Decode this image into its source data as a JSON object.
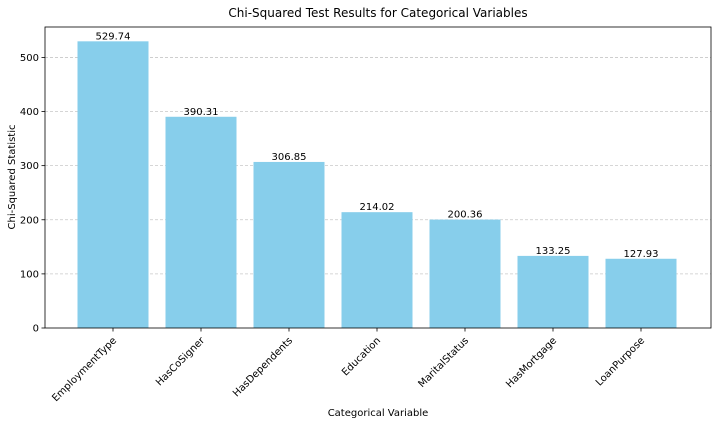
{
  "chart_data": {
    "type": "bar",
    "title": "Chi-Squared Test Results for Categorical Variables",
    "xlabel": "Categorical Variable",
    "ylabel": "Chi-Squared Statistic",
    "categories": [
      "EmploymentType",
      "HasCoSigner",
      "HasDependents",
      "Education",
      "MaritalStatus",
      "HasMortgage",
      "LoanPurpose"
    ],
    "values": [
      529.74,
      390.31,
      306.85,
      214.02,
      200.36,
      133.25,
      127.93
    ],
    "value_labels": [
      "529.74",
      "390.31",
      "306.85",
      "214.02",
      "200.36",
      "133.25",
      "127.93"
    ],
    "ylim": [
      0,
      556.2
    ],
    "yticks": [
      0,
      100,
      200,
      300,
      400,
      500
    ],
    "grid": {
      "y": true,
      "x": false,
      "style": "dashed"
    },
    "bar_color": "#87CEEB",
    "grid_color": "#c8c8c8"
  }
}
